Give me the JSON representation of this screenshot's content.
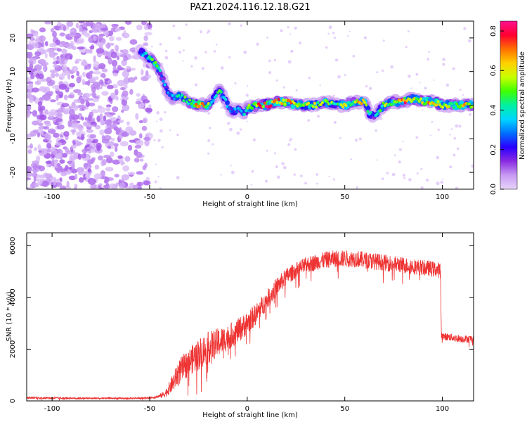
{
  "title": "PAZ1.2024.116.12.18.G21",
  "chart_data": [
    {
      "type": "heatmap",
      "xlabel": "Height of straight line (km)",
      "ylabel": "Frequency (Hz)",
      "xlim": [
        -113,
        116
      ],
      "ylim": [
        -25,
        25
      ],
      "xticks": [
        -100,
        -50,
        0,
        50,
        100
      ],
      "yticks": [
        -20,
        -10,
        0,
        10,
        20
      ],
      "colorbar": {
        "label": "Normalized spectral amplitude",
        "range": [
          0.0,
          0.85
        ],
        "ticks": [
          0.0,
          0.2,
          0.4,
          0.6,
          0.8
        ],
        "colors": [
          "#e8d5fb",
          "#c79af3",
          "#8a2be2",
          "#2a00ff",
          "#0070ff",
          "#00d7ff",
          "#00f0a0",
          "#40ff00",
          "#c8ff00",
          "#ffd000",
          "#ff7000",
          "#ff0030",
          "#ff1090"
        ]
      },
      "noise_region": {
        "x": [
          -113,
          -50
        ],
        "y": [
          -25,
          25
        ],
        "amplitude": 0.12
      },
      "ridge": {
        "x": [
          -55,
          -50,
          -47,
          -44,
          -41,
          -38,
          -35,
          -30,
          -25,
          -20,
          -16,
          -14,
          -11,
          -8,
          -4,
          -2,
          0,
          5,
          10,
          15,
          20,
          25,
          30,
          35,
          40,
          45,
          50,
          55,
          60,
          63,
          65,
          70,
          75,
          80,
          85,
          90,
          95,
          100,
          105,
          110,
          116
        ],
        "y": [
          16,
          14,
          12,
          9,
          4,
          2,
          3,
          1,
          0,
          0,
          3,
          5,
          1,
          -2,
          -1,
          -3,
          -1,
          0,
          0,
          1,
          1,
          0,
          0,
          0,
          1,
          0,
          0,
          1,
          1,
          -3,
          -3,
          0,
          1,
          1,
          2,
          1,
          1,
          0,
          0,
          0,
          0
        ],
        "amplitude": [
          0.25,
          0.45,
          0.55,
          0.3,
          0.3,
          0.35,
          0.4,
          0.45,
          0.7,
          0.5,
          0.35,
          0.45,
          0.4,
          0.25,
          0.35,
          0.3,
          0.45,
          0.6,
          0.75,
          0.65,
          0.7,
          0.55,
          0.5,
          0.55,
          0.5,
          0.45,
          0.5,
          0.55,
          0.6,
          0.35,
          0.3,
          0.5,
          0.55,
          0.7,
          0.6,
          0.6,
          0.7,
          0.55,
          0.5,
          0.6,
          0.5
        ]
      }
    },
    {
      "type": "line",
      "xlabel": "Height of straight line (km)",
      "ylabel": "SNR (10 * v/v)",
      "xlim": [
        -113,
        116
      ],
      "ylim": [
        0,
        6500
      ],
      "xticks": [
        -100,
        -50,
        0,
        50,
        100
      ],
      "yticks": [
        0,
        2000,
        4000,
        6000
      ],
      "color": "#ee3333",
      "series": [
        {
          "x": [
            -113,
            -100,
            -80,
            -60,
            -50,
            -45,
            -42,
            -38,
            -35,
            -30,
            -25,
            -20,
            -15,
            -10,
            -5,
            0,
            5,
            10,
            15,
            20,
            25,
            30,
            35,
            40,
            45,
            50,
            55,
            60,
            65,
            70,
            75,
            80,
            85,
            90,
            95,
            99,
            99.5,
            100,
            105,
            110,
            116
          ],
          "y": [
            120,
            110,
            100,
            100,
            120,
            180,
            280,
            700,
            1100,
            1500,
            1800,
            2050,
            2250,
            2450,
            2700,
            3000,
            3400,
            3900,
            4400,
            4800,
            5050,
            5250,
            5350,
            5450,
            5500,
            5500,
            5500,
            5450,
            5400,
            5350,
            5300,
            5250,
            5200,
            5150,
            5100,
            5050,
            2550,
            2500,
            2450,
            2400,
            2400
          ],
          "noise_fraction": [
            0.35,
            0.35,
            0.35,
            0.35,
            0.35,
            0.4,
            0.5,
            0.5,
            0.45,
            0.35,
            0.35,
            0.3,
            0.25,
            0.2,
            0.18,
            0.15,
            0.12,
            0.1,
            0.08,
            0.07,
            0.06,
            0.06,
            0.06,
            0.06,
            0.06,
            0.06,
            0.06,
            0.06,
            0.06,
            0.06,
            0.06,
            0.06,
            0.06,
            0.06,
            0.06,
            0.06,
            0.06,
            0.06,
            0.06,
            0.06,
            0.06
          ]
        }
      ]
    }
  ]
}
